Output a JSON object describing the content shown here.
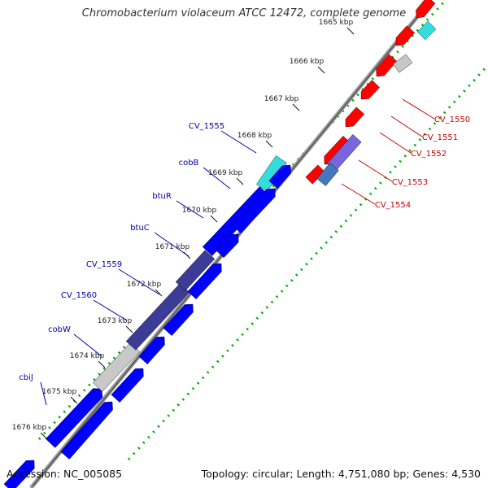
{
  "header": {
    "title": "Chromobacterium violaceum ATCC 12472, complete genome"
  },
  "footer": {
    "accession": "Accession: NC_005085",
    "summary": "Topology: circular; Length: 4,751,080 bp; Genes: 4,530"
  },
  "colors": {
    "forward_gene": "#0000ff",
    "reverse_gene": "#ff0000",
    "highlight_gene": "#3c3c96",
    "gray_gene": "#c8c8c8",
    "cyan_gene": "#33dddd",
    "tick": "#00aa00",
    "backbone": "#888888"
  },
  "ticks": [
    "1665 kbp",
    "1666 kbp",
    "1667 kbp",
    "1668 kbp",
    "1669 kbp",
    "1670 kbp",
    "1671 kbp",
    "1672 kbp",
    "1673 kbp",
    "1674 kbp",
    "1675 kbp",
    "1676 kbp"
  ],
  "forward_gene_labels": [
    "CV_1555",
    "cobB",
    "btuR",
    "btuC",
    "CV_1559",
    "CV_1560",
    "cobW",
    "cbiJ"
  ],
  "reverse_gene_labels": [
    "CV_1550",
    "CV_1551",
    "CV_1552",
    "CV_1553",
    "CV_1554"
  ]
}
